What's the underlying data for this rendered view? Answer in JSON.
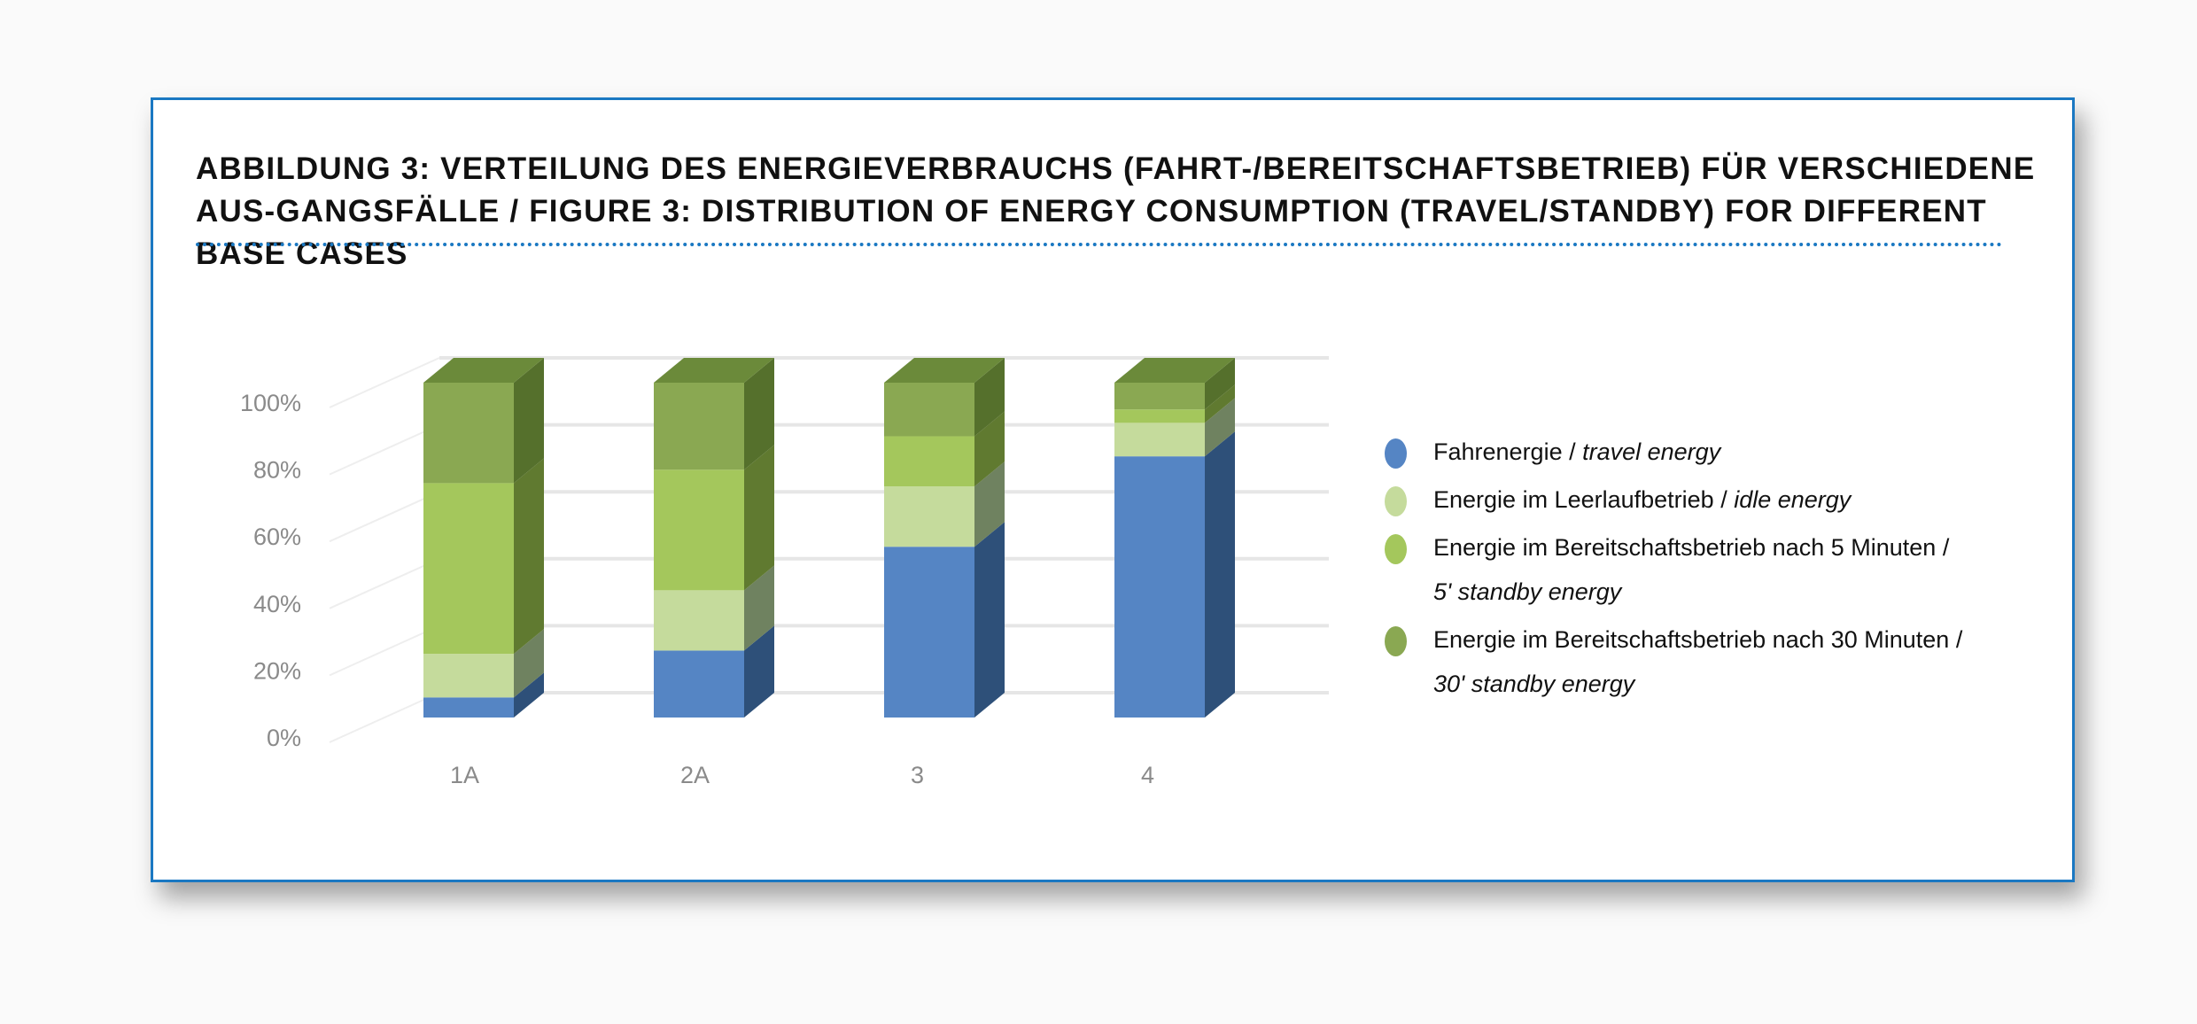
{
  "title": "ABBILDUNG 3: VERTEILUNG DES ENERGIEVERBRAUCHS (FAHRT-/BEREITSCHAFTSBETRIEB) FÜR VERSCHIEDENE AUS-GANGSFÄLLE / FIGURE 3: DISTRIBUTION OF ENERGY CONSUMPTION (TRAVEL/STANDBY) FOR DIFFERENT BASE CASES",
  "chart_data": {
    "type": "bar",
    "stacked": true,
    "style": "3d-100%-stacked-column",
    "categories": [
      "1A",
      "2A",
      "3",
      "4"
    ],
    "yticks": [
      "0%",
      "20%",
      "40%",
      "60%",
      "80%",
      "100%"
    ],
    "ylim": [
      0,
      100
    ],
    "grid": true,
    "legend_position": "right",
    "series": [
      {
        "name": "Fahrenergie",
        "name_en": "travel energy",
        "color": "#5585c4",
        "side": "#2e5079",
        "values": [
          6,
          20,
          51,
          78
        ]
      },
      {
        "name": "Energie im Leerlaufbetrieb",
        "name_en": "idle energy",
        "color": "#c5db9c",
        "side": "#6f8260",
        "values": [
          13,
          18,
          18,
          10
        ]
      },
      {
        "name": "Energie im Bereitschaftsbetrieb nach 5 Minuten",
        "name_en": "5' standby energy",
        "color": "#a4c75c",
        "side": "#607a30",
        "values": [
          51,
          36,
          15,
          4
        ]
      },
      {
        "name": "Energie im Bereitschaftsbetrieb nach 30 Minuten",
        "name_en": "30' standby energy",
        "color": "#8aa852",
        "side": "#55702c",
        "values": [
          30,
          26,
          16,
          8
        ]
      }
    ]
  },
  "legend_sep": " / "
}
